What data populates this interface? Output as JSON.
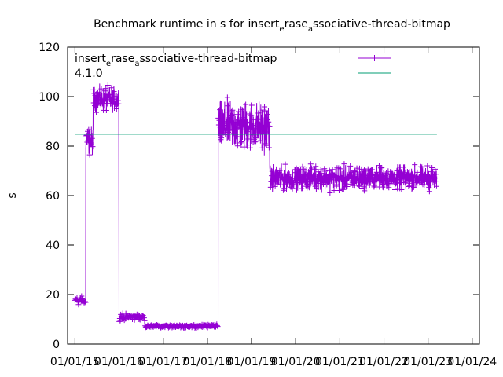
{
  "chart_data": {
    "type": "line",
    "title": {
      "before": "Benchmark runtime in s for insert",
      "sub1": "e",
      "mid": "rase",
      "sub2": "a",
      "after": "ssociative-thread-bitmap"
    },
    "ylabel": "s",
    "xlabel": "",
    "ylim": [
      0,
      120
    ],
    "y_ticks": [
      "0",
      "20",
      "40",
      "60",
      "80",
      "100",
      "120"
    ],
    "xlim": [
      "2014-11-01",
      "2024-03-01"
    ],
    "x_ticks": [
      "01/01/15",
      "01/01/16",
      "01/01/17",
      "01/01/18",
      "01/01/19",
      "01/01/20",
      "01/01/21",
      "01/01/22",
      "01/01/23",
      "01/01/24"
    ],
    "legend_placement": "top",
    "grid": false,
    "colors": {
      "series": "#9400d3",
      "reference": "#009e73"
    },
    "legend": {
      "line1": {
        "before": "insert",
        "sub1": "e",
        "mid": "rase",
        "sub2": "a",
        "after": "ssociative-thread-bitmap"
      },
      "line2": "4.1.0"
    },
    "reference_line": {
      "y": 84.8,
      "x_start": "2015-01-01",
      "x_end": "2023-03-15"
    },
    "segments": [
      {
        "start": "2015-01-01",
        "end": "2015-04-01",
        "mean": 17.5,
        "spread": 2.5
      },
      {
        "start": "2015-04-01",
        "end": "2015-06-01",
        "mean": 82,
        "spread": 8
      },
      {
        "start": "2015-06-01",
        "end": "2015-12-31",
        "mean": 99,
        "spread": 7
      },
      {
        "start": "2016-01-01",
        "end": "2016-08-01",
        "mean": 11,
        "spread": 2
      },
      {
        "start": "2016-08-01",
        "end": "2018-04-01",
        "mean": 7.3,
        "spread": 1
      },
      {
        "start": "2018-04-01",
        "end": "2019-06-01",
        "mean": 88,
        "spread": 14
      },
      {
        "start": "2019-06-01",
        "end": "2023-03-15",
        "mean": 67,
        "spread": 7
      }
    ]
  }
}
